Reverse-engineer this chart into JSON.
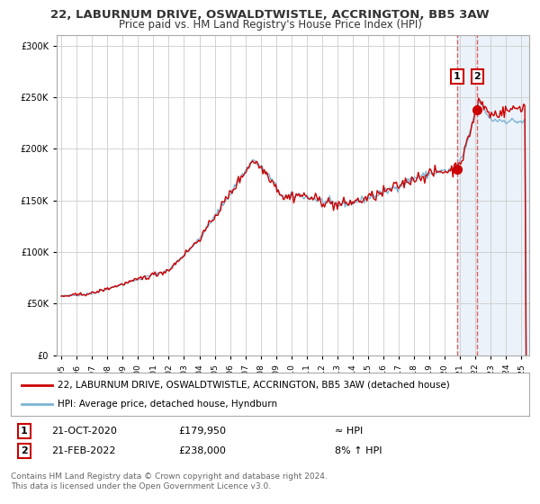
{
  "title": "22, LABURNUM DRIVE, OSWALDTWISTLE, ACCRINGTON, BB5 3AW",
  "subtitle": "Price paid vs. HM Land Registry's House Price Index (HPI)",
  "legend_line1": "22, LABURNUM DRIVE, OSWALDTWISTLE, ACCRINGTON, BB5 3AW (detached house)",
  "legend_line2": "HPI: Average price, detached house, Hyndburn",
  "transaction1_date": "21-OCT-2020",
  "transaction1_price": "£179,950",
  "transaction1_hpi": "≈ HPI",
  "transaction2_date": "21-FEB-2022",
  "transaction2_price": "£238,000",
  "transaction2_hpi": "8% ↑ HPI",
  "footer": "Contains HM Land Registry data © Crown copyright and database right 2024.\nThis data is licensed under the Open Government Licence v3.0.",
  "hpi_color": "#7cb4d4",
  "price_color": "#cc0000",
  "marker_color": "#cc0000",
  "vline_color": "#e06060",
  "shade_color": "#deeaf5",
  "grid_color": "#cccccc",
  "t1_x": 2020.8,
  "t2_x": 2022.12,
  "t1_y": 179950,
  "t2_y": 238000,
  "ylim": [
    0,
    310000
  ],
  "xlim_start": 1994.7,
  "xlim_end": 2025.5
}
